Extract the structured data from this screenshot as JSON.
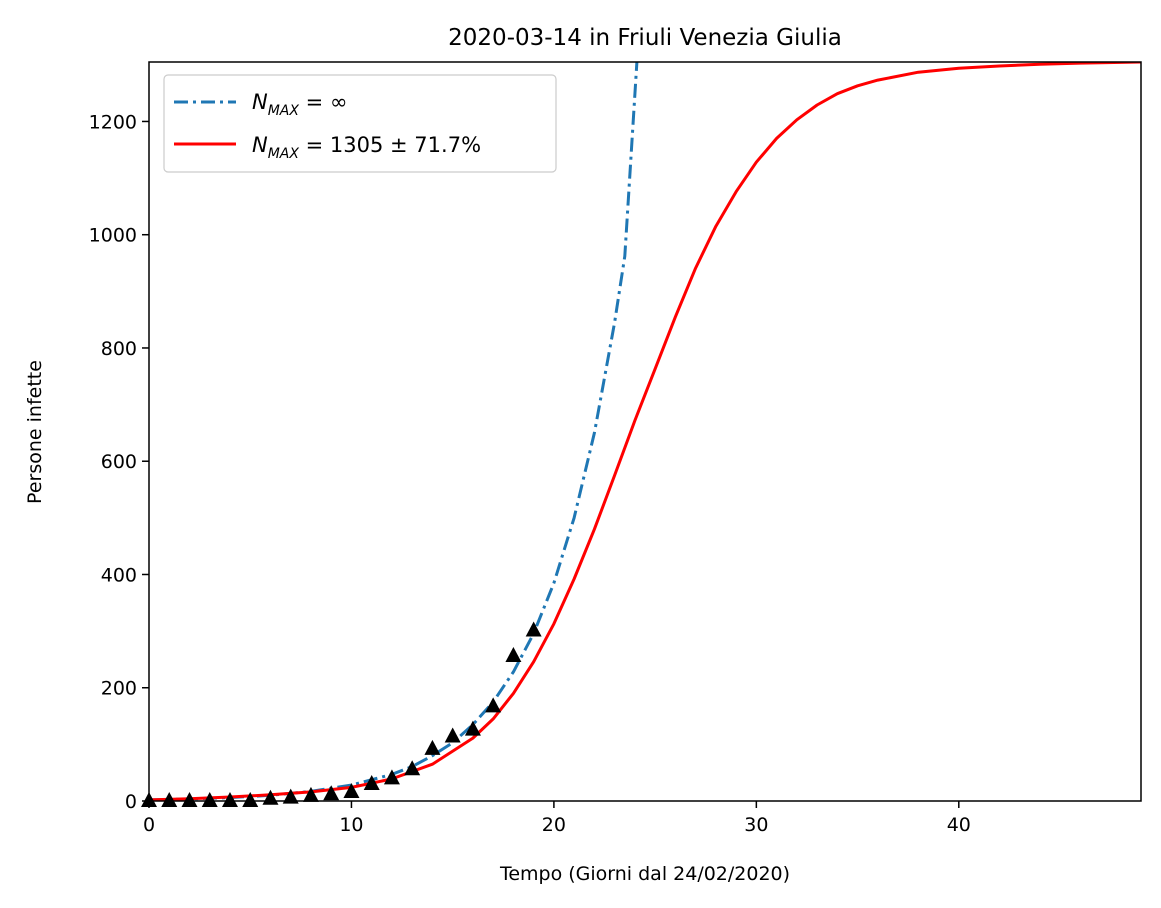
{
  "chart_data": {
    "type": "line",
    "title": "2020-03-14 in Friuli Venezia Giulia",
    "xlabel": "Tempo (Giorni dal 24/02/2020)",
    "ylabel": "Persone infette",
    "xlim": [
      0,
      49
    ],
    "ylim": [
      0,
      1305
    ],
    "xticks": [
      0,
      10,
      20,
      30,
      40
    ],
    "yticks": [
      0,
      200,
      400,
      600,
      800,
      1000,
      1200
    ],
    "grid": false,
    "legend_position": "top-left",
    "series": [
      {
        "name": "N_MAX = ∞",
        "kind": "exponential-fit",
        "color": "#1f77b4",
        "dash": "dash-dot",
        "x": [
          0,
          2,
          4,
          6,
          8,
          10,
          12,
          13,
          14,
          15,
          16,
          17,
          18,
          19,
          20,
          21,
          22,
          23,
          23.5,
          24.1
        ],
        "values": [
          2,
          3.5,
          6,
          10,
          17,
          28,
          47,
          61,
          80,
          103,
          135,
          175,
          228,
          296,
          385,
          500,
          650,
          845,
          962,
          1305
        ]
      },
      {
        "name": "N_MAX = 1305 ± 71.7%",
        "kind": "logistic-fit",
        "color": "#ff0000",
        "dash": "solid",
        "x": [
          0,
          2,
          4,
          6,
          8,
          10,
          12,
          14,
          16,
          17,
          18,
          19,
          20,
          21,
          22,
          23,
          24,
          25,
          26,
          27,
          28,
          29,
          30,
          31,
          32,
          33,
          34,
          35,
          36,
          38,
          40,
          42,
          44,
          46,
          49
        ],
        "values": [
          2,
          4,
          7,
          11,
          16,
          24,
          39,
          65,
          111,
          145,
          190,
          246,
          313,
          392,
          480,
          575,
          672,
          763,
          855,
          941,
          1015,
          1076,
          1128,
          1170,
          1203,
          1229,
          1249,
          1263,
          1273,
          1287,
          1294,
          1298,
          1301,
          1303,
          1305
        ]
      },
      {
        "name": "",
        "kind": "observed",
        "color": "#000000",
        "marker": "triangle",
        "x": [
          0,
          1,
          2,
          3,
          4,
          5,
          6,
          7,
          8,
          9,
          10,
          11,
          12,
          13,
          14,
          15,
          16,
          17,
          18,
          19
        ],
        "values": [
          0,
          0,
          0,
          0,
          0,
          0,
          4,
          6,
          9,
          12,
          16,
          30,
          40,
          56,
          92,
          114,
          126,
          167,
          256,
          301
        ]
      }
    ]
  }
}
